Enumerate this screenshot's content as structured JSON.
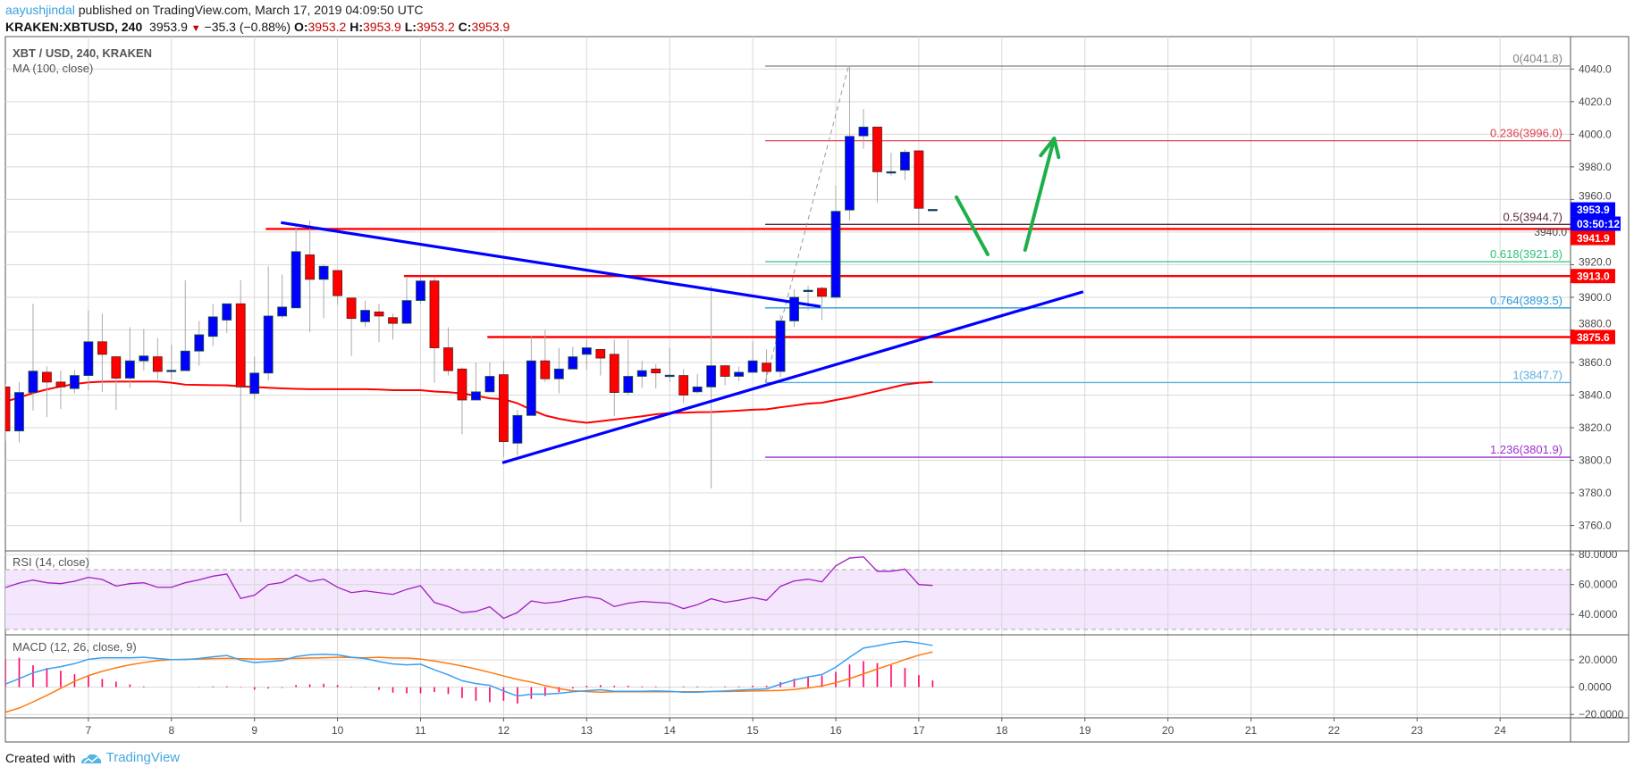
{
  "header": {
    "author": "aayushjindal",
    "published": "published on TradingView.com, March 17, 2019 04:09:50 UTC",
    "symbol": "KRAKEN:XBTUSD, 240",
    "last": "3953.9",
    "change": "−35.3 (−0.88%)",
    "o_label": "O:",
    "o": "3953.2",
    "h_label": "H:",
    "h": "3953.9",
    "l_label": "L:",
    "l": "3953.2",
    "c_label": "C:",
    "c": "3953.9",
    "down_icon": "triangle-down-icon"
  },
  "footer": {
    "created_with": "Created with",
    "brand": "TradingView",
    "logo_icon": "tradingview-cloud-logo"
  },
  "chart_data": [
    {
      "type": "candlestick",
      "title": "XBT / USD, 240, KRAKEN",
      "indicator_label": "MA (100, close)",
      "x_ticks": [
        "7",
        "8",
        "9",
        "10",
        "11",
        "12",
        "13",
        "14",
        "15",
        "16",
        "17",
        "18",
        "19",
        "20",
        "21",
        "22",
        "23",
        "24"
      ],
      "first_day": 6,
      "candles_per_day": 6,
      "ylim": [
        3740,
        4060
      ],
      "y_ticks": [
        "3760.0",
        "3780.0",
        "3800.0",
        "3820.0",
        "3840.0",
        "3860.0",
        "3880.0",
        "3900.0",
        "3920.0",
        "3940.0",
        "3960.0",
        "3980.0",
        "4000.0",
        "4020.0",
        "4040.0"
      ],
      "grid": true,
      "colors": {
        "up": "#0000ff",
        "down": "#ff0000",
        "ma": "#ff0000",
        "trendline": "#0000ff",
        "level": "#ff0000",
        "arrow": "#1db04a"
      },
      "ohlc": [
        [
          3845,
          3847,
          3812,
          3818
        ],
        [
          3818,
          3848,
          3811,
          3841.6
        ],
        [
          3841.6,
          3896,
          3830.5,
          3854.7
        ],
        [
          3854,
          3857.6,
          3826.5,
          3848
        ],
        [
          3848,
          3855,
          3831.5,
          3845
        ],
        [
          3844,
          3855.5,
          3841,
          3852
        ],
        [
          3852,
          3892,
          3843,
          3872.7
        ],
        [
          3872.7,
          3890,
          3842,
          3865
        ],
        [
          3863.5,
          3864,
          3831,
          3850.4
        ],
        [
          3850.4,
          3881.6,
          3844.5,
          3861
        ],
        [
          3861,
          3880.5,
          3855,
          3864
        ],
        [
          3863.5,
          3875,
          3849.5,
          3854.5
        ],
        [
          3855,
          3871,
          3849.5,
          3855.2
        ],
        [
          3855,
          3910.5,
          3855,
          3867
        ],
        [
          3867,
          3885.5,
          3858,
          3877
        ],
        [
          3876,
          3896,
          3870,
          3888
        ],
        [
          3886,
          3896,
          3878,
          3896
        ],
        [
          3896,
          3910.5,
          3762,
          3845
        ],
        [
          3841,
          3863.6,
          3837.5,
          3853.5
        ],
        [
          3853.5,
          3919,
          3849,
          3888.5
        ],
        [
          3888.5,
          3914,
          3887,
          3894
        ],
        [
          3893.5,
          3943.6,
          3893.5,
          3928
        ],
        [
          3926,
          3947,
          3878.5,
          3911
        ],
        [
          3911,
          3920,
          3887,
          3919
        ],
        [
          3916.4,
          3916.4,
          3895.5,
          3901
        ],
        [
          3899.5,
          3899.5,
          3864,
          3887
        ],
        [
          3885,
          3898,
          3882,
          3892
        ],
        [
          3891,
          3896,
          3872.5,
          3888.5
        ],
        [
          3887.5,
          3890,
          3874,
          3884
        ],
        [
          3884,
          3912,
          3884,
          3898
        ],
        [
          3898,
          3912,
          3896,
          3910
        ],
        [
          3910,
          3912,
          3847.6,
          3869
        ],
        [
          3869,
          3881.6,
          3852,
          3855
        ],
        [
          3856,
          3857,
          3816,
          3837
        ],
        [
          3837,
          3860,
          3837,
          3842
        ],
        [
          3842,
          3860,
          3842,
          3851.5
        ],
        [
          3852.5,
          3861,
          3802,
          3811.5
        ],
        [
          3810.5,
          3831,
          3803,
          3827.5
        ],
        [
          3827.5,
          3876,
          3827.5,
          3861
        ],
        [
          3861,
          3880,
          3848,
          3850
        ],
        [
          3850,
          3869,
          3841,
          3856
        ],
        [
          3856,
          3869.6,
          3856,
          3863.5
        ],
        [
          3865,
          3874,
          3855.6,
          3869
        ],
        [
          3868,
          3868,
          3852,
          3862.7
        ],
        [
          3865,
          3874,
          3827,
          3841.6
        ],
        [
          3841.6,
          3874,
          3840,
          3851.5
        ],
        [
          3851.5,
          3861,
          3844.5,
          3855
        ],
        [
          3856,
          3859,
          3844,
          3853.6
        ],
        [
          3852,
          3869,
          3848,
          3852.2
        ],
        [
          3852,
          3856,
          3835,
          3840
        ],
        [
          3842,
          3853,
          3841,
          3845
        ],
        [
          3845,
          3907,
          3782.7,
          3858
        ],
        [
          3858,
          3858,
          3846,
          3851.5
        ],
        [
          3851.5,
          3857.6,
          3848.5,
          3854
        ],
        [
          3854,
          3873,
          3854,
          3861
        ],
        [
          3859.6,
          3868,
          3848,
          3854.5
        ],
        [
          3854.5,
          3889,
          3851,
          3885.5
        ],
        [
          3885.5,
          3905,
          3881.8,
          3900
        ],
        [
          3904,
          3907,
          3892,
          3904.3
        ],
        [
          3905.5,
          3906.5,
          3886,
          3900.6
        ],
        [
          3900,
          3968.6,
          3900,
          3952.7
        ],
        [
          3953.5,
          4041.8,
          3947,
          3998.7
        ],
        [
          3999,
          4015.5,
          3991,
          4004.4
        ],
        [
          4004.4,
          4004.4,
          3958.2,
          3977
        ],
        [
          3976.5,
          3988.7,
          3974.6,
          3977
        ],
        [
          3978,
          3990.7,
          3972,
          3989
        ],
        [
          3989.8,
          3989.8,
          3945.4,
          3954.6
        ],
        [
          3953.2,
          3953.9,
          3953.2,
          3953.9
        ]
      ],
      "ma100": [
        3836,
        3838.5,
        3841.3,
        3843.5,
        3845.3,
        3846.8,
        3847.8,
        3848.2,
        3848.3,
        3848.3,
        3848.3,
        3848.3,
        3847.6,
        3846.4,
        3846.2,
        3846.1,
        3846,
        3845.4,
        3844.9,
        3844.5,
        3844.1,
        3843.8,
        3843.6,
        3843.6,
        3843.6,
        3843.6,
        3843.6,
        3843.4,
        3843,
        3843,
        3843,
        3842.2,
        3841.8,
        3841,
        3839.6,
        3838,
        3837.5,
        3835,
        3831,
        3827.5,
        3825.5,
        3824,
        3823,
        3824,
        3825,
        3826,
        3827,
        3828.2,
        3829,
        3829.2,
        3829.5,
        3829.6,
        3830,
        3830.5,
        3831,
        3831.3,
        3832.5,
        3833.6,
        3834.8,
        3835.3,
        3837,
        3838.5,
        3840.5,
        3842.5,
        3844.5,
        3846.5,
        3847.5,
        3848
      ],
      "fib_levels": [
        {
          "label": "0(4041.8)",
          "price": 4041.8,
          "color": "#808080"
        },
        {
          "label": "0.236(3996.0)",
          "price": 3996.0,
          "color": "#e04050"
        },
        {
          "label": "0.5(3944.7)",
          "price": 3944.7,
          "color": "#5a2a3a"
        },
        {
          "label": "0.618(3921.8)",
          "price": 3921.8,
          "color": "#30c080"
        },
        {
          "label": "0.764(3893.5)",
          "price": 3893.5,
          "color": "#2a9ad8"
        },
        {
          "label": "1(3847.7)",
          "price": 3847.7,
          "color": "#5ab0e0"
        },
        {
          "label": "1.236(3801.9)",
          "price": 3801.9,
          "color": "#9a30d0"
        }
      ],
      "fib_anchor": [
        [
          15.15,
          3847.7
        ],
        [
          16.154,
          4041.8
        ]
      ],
      "horizontal_levels": [
        {
          "price": 3941.9,
          "from_day": 9.136,
          "label": "3941.9"
        },
        {
          "price": 3913.0,
          "from_day": 10.8,
          "label": "3913.0"
        },
        {
          "price": 3875.6,
          "from_day": 11.805,
          "label": "3875.6"
        }
      ],
      "trendlines": [
        {
          "from": [
            9.319,
            3945.8
          ],
          "to": [
            15.817,
            3894.3
          ]
        },
        {
          "from": [
            11.985,
            3798.5
          ],
          "to": [
            18.98,
            3903.4
          ]
        }
      ],
      "arrows": [
        {
          "from": [
            17.453,
            3961.4
          ],
          "to": [
            17.83,
            3926.3
          ],
          "head": false
        },
        {
          "from": [
            18.28,
            3929.0
          ],
          "to": [
            18.63,
            3997.4
          ],
          "head": true
        }
      ],
      "last_price_badge": {
        "label": "3953.9",
        "price": 3953.9,
        "color": "#0000ff"
      },
      "countdown_badge": {
        "label": "03:50:12",
        "color": "#0000ff"
      }
    },
    {
      "type": "line",
      "title": "RSI (14, close)",
      "ylim": [
        25,
        85
      ],
      "y_ticks": [
        "40.0000",
        "60.0000",
        "80.0000"
      ],
      "band": [
        30,
        70
      ],
      "colors": {
        "line": "#a020c0",
        "band": "#f3e6fd"
      },
      "values": [
        58,
        61,
        63,
        61.2,
        60.6,
        62.2,
        64.8,
        63.4,
        59,
        60.6,
        61.2,
        58.2,
        58.2,
        61.2,
        63.2,
        65.6,
        67,
        50.7,
        52.9,
        60,
        61.4,
        66.5,
        62,
        63.6,
        58.2,
        54.6,
        55.8,
        54.6,
        53.4,
        56.8,
        59.2,
        48,
        45.3,
        41.2,
        42.1,
        45.1,
        37.4,
        41.3,
        49,
        47.5,
        48.5,
        50.5,
        51.9,
        50.5,
        45.3,
        47.5,
        48.7,
        48.1,
        47.5,
        43.9,
        46.5,
        50.5,
        48.1,
        49.5,
        51.3,
        49.5,
        58.8,
        62.4,
        63.6,
        61.8,
        72.5,
        77.7,
        78.5,
        68.9,
        68.9,
        70.3,
        60,
        59.4
      ]
    },
    {
      "type": "line",
      "title": "MACD (12, 26, close, 9)",
      "ylim": [
        -25,
        35
      ],
      "y_ticks": [
        "−20.0000",
        "0.0000",
        "20.0000"
      ],
      "colors": {
        "macd": "#3aa0f0",
        "signal": "#ff7a10",
        "histogram": "#ff0066"
      },
      "macd": [
        2.2,
        6.2,
        10.5,
        13.3,
        15,
        17.2,
        20.4,
        21.5,
        21.5,
        21.5,
        21.9,
        21,
        20.2,
        20.2,
        21,
        22.2,
        23.2,
        19.8,
        18,
        18.7,
        19.4,
        22.4,
        23.7,
        24.1,
        23.7,
        21.9,
        20.9,
        18.7,
        17,
        16.3,
        16.8,
        12.7,
        9,
        4.7,
        2.6,
        1.3,
        -2.8,
        -6.5,
        -5.2,
        -5.2,
        -4.5,
        -3.4,
        -2.6,
        -1.9,
        -3,
        -3,
        -3,
        -2.8,
        -3,
        -3.7,
        -3.7,
        -3.2,
        -2.8,
        -2.2,
        -1.7,
        -1.3,
        2.2,
        5.2,
        7.5,
        9.2,
        14.6,
        21.9,
        28.6,
        30.3,
        32.3,
        33.5,
        32.3,
        30.5
      ],
      "signal": [
        -18.3,
        -15.3,
        -10.8,
        -6,
        -0.9,
        4.3,
        8.4,
        11.6,
        14.2,
        16.3,
        18,
        19.4,
        20.2,
        20.4,
        20.6,
        20.9,
        21.1,
        20.9,
        20.6,
        20.6,
        20.9,
        21.1,
        21.3,
        21.5,
        21.9,
        21.7,
        21.5,
        21.9,
        21.3,
        21.3,
        20.6,
        19.1,
        17.4,
        15.5,
        13.3,
        10.8,
        8.2,
        5.6,
        3.7,
        1.1,
        -1.1,
        -2.6,
        -3.2,
        -3.7,
        -3.4,
        -3.4,
        -3.4,
        -3.4,
        -3.4,
        -3.4,
        -3.4,
        -3.2,
        -3.2,
        -3,
        -2.8,
        -2.6,
        -2.4,
        -1.7,
        -0.6,
        0.9,
        3.2,
        6.2,
        9.7,
        13.3,
        16.6,
        20.2,
        23.4,
        25.8
      ],
      "histogram": [
        20.5,
        21.5,
        16,
        14,
        12,
        9.5,
        8,
        6,
        4,
        2,
        0.5,
        0,
        -0.1,
        0,
        0.2,
        0.5,
        0.6,
        -0.3,
        -1.8,
        -1,
        -0.5,
        1.5,
        2,
        2.5,
        1.5,
        0.3,
        -0.3,
        -2,
        -4,
        -4.5,
        -4.5,
        -3.5,
        -5,
        -8,
        -10,
        -11,
        -10,
        -12,
        -8.6,
        -6.5,
        -3.7,
        -1,
        1,
        1.5,
        1,
        1,
        0.5,
        0.5,
        0.2,
        0.5,
        0.5,
        0.2,
        0.5,
        0.5,
        1,
        1,
        3.7,
        6.2,
        7.5,
        8.4,
        11.2,
        16.6,
        19.1,
        17.6,
        16.1,
        14,
        8.8,
        4.9
      ]
    }
  ]
}
